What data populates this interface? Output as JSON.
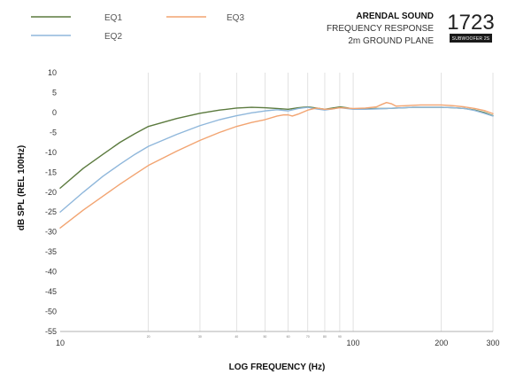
{
  "header": {
    "brand": "ARENDAL SOUND",
    "line1": "FREQUENCY RESPONSE",
    "line2": "2m GROUND PLANE",
    "model_number": "1723",
    "model_badge": "SUBWOOFER 2S"
  },
  "chart_data": {
    "type": "line",
    "title": "",
    "xlabel": "LOG FREQUENCY (Hz)",
    "ylabel": "dB SPL (REL 100Hz)",
    "x_scale": "log",
    "xlim": [
      10,
      300
    ],
    "ylim": [
      -55,
      10
    ],
    "grid": true,
    "legend_position": "top-left",
    "y_ticks": [
      10,
      5,
      0,
      -5,
      -10,
      -15,
      -20,
      -25,
      -30,
      -35,
      -40,
      -45,
      -50,
      -55
    ],
    "y_tick_labels": [
      "10",
      "5",
      "0",
      "-5",
      "-10",
      "-15",
      "-20",
      "-25",
      "-30",
      "-35",
      "-40",
      "-45",
      "-50",
      "-55"
    ],
    "x_major_ticks": [
      {
        "value": 10,
        "label": "10"
      },
      {
        "value": 100,
        "label": "100"
      },
      {
        "value": 200,
        "label": "200"
      },
      {
        "value": 300,
        "label": "300"
      }
    ],
    "x_minor_ticks": [
      {
        "value": 20,
        "label": "20"
      },
      {
        "value": 30,
        "label": "30"
      },
      {
        "value": 40,
        "label": "40"
      },
      {
        "value": 50,
        "label": "50"
      },
      {
        "value": 60,
        "label": "60"
      },
      {
        "value": 70,
        "label": "70"
      },
      {
        "value": 80,
        "label": "80"
      },
      {
        "value": 90,
        "label": "90"
      }
    ],
    "series": [
      {
        "name": "EQ1",
        "color": "#5b7a3e",
        "points": [
          [
            10,
            -19
          ],
          [
            12,
            -14
          ],
          [
            14,
            -10.5
          ],
          [
            16,
            -7.5
          ],
          [
            18,
            -5.3
          ],
          [
            20,
            -3.5
          ],
          [
            25,
            -1.5
          ],
          [
            30,
            -0.2
          ],
          [
            35,
            0.6
          ],
          [
            40,
            1.1
          ],
          [
            45,
            1.3
          ],
          [
            50,
            1.2
          ],
          [
            55,
            1.0
          ],
          [
            60,
            0.8
          ],
          [
            65,
            1.2
          ],
          [
            70,
            1.4
          ],
          [
            75,
            1.1
          ],
          [
            80,
            0.8
          ],
          [
            85,
            1.1
          ],
          [
            90,
            1.4
          ],
          [
            95,
            1.2
          ],
          [
            100,
            0.9
          ],
          [
            110,
            0.9
          ],
          [
            120,
            1.0
          ],
          [
            130,
            1.0
          ],
          [
            140,
            1.1
          ],
          [
            150,
            1.2
          ],
          [
            160,
            1.3
          ],
          [
            170,
            1.3
          ],
          [
            180,
            1.3
          ],
          [
            190,
            1.3
          ],
          [
            200,
            1.3
          ],
          [
            220,
            1.2
          ],
          [
            240,
            1.0
          ],
          [
            260,
            0.6
          ],
          [
            280,
            0.0
          ],
          [
            300,
            -0.8
          ]
        ]
      },
      {
        "name": "EQ2",
        "color": "#8fb7db",
        "points": [
          [
            10,
            -25
          ],
          [
            12,
            -20
          ],
          [
            14,
            -16
          ],
          [
            16,
            -13
          ],
          [
            18,
            -10.5
          ],
          [
            20,
            -8.5
          ],
          [
            25,
            -5.5
          ],
          [
            30,
            -3.3
          ],
          [
            35,
            -1.8
          ],
          [
            40,
            -0.8
          ],
          [
            45,
            -0.1
          ],
          [
            50,
            0.4
          ],
          [
            55,
            0.7
          ],
          [
            60,
            0.4
          ],
          [
            65,
            1.0
          ],
          [
            70,
            1.3
          ],
          [
            75,
            0.9
          ],
          [
            80,
            0.6
          ],
          [
            85,
            0.9
          ],
          [
            90,
            1.2
          ],
          [
            95,
            1.0
          ],
          [
            100,
            0.8
          ],
          [
            110,
            0.8
          ],
          [
            120,
            0.9
          ],
          [
            130,
            1.0
          ],
          [
            140,
            1.1
          ],
          [
            150,
            1.2
          ],
          [
            160,
            1.3
          ],
          [
            170,
            1.3
          ],
          [
            180,
            1.3
          ],
          [
            190,
            1.3
          ],
          [
            200,
            1.3
          ],
          [
            220,
            1.2
          ],
          [
            240,
            1.0
          ],
          [
            260,
            0.5
          ],
          [
            280,
            -0.2
          ],
          [
            300,
            -0.9
          ]
        ]
      },
      {
        "name": "EQ3",
        "color": "#f2a471",
        "points": [
          [
            10,
            -29
          ],
          [
            12,
            -24.5
          ],
          [
            14,
            -21
          ],
          [
            16,
            -18
          ],
          [
            18,
            -15.5
          ],
          [
            20,
            -13.3
          ],
          [
            25,
            -9.7
          ],
          [
            30,
            -7.0
          ],
          [
            35,
            -5.0
          ],
          [
            40,
            -3.5
          ],
          [
            45,
            -2.5
          ],
          [
            50,
            -1.8
          ],
          [
            55,
            -0.9
          ],
          [
            58,
            -0.6
          ],
          [
            60,
            -0.6
          ],
          [
            62,
            -0.9
          ],
          [
            65,
            -0.4
          ],
          [
            70,
            0.6
          ],
          [
            75,
            1.1
          ],
          [
            80,
            0.8
          ],
          [
            85,
            0.9
          ],
          [
            90,
            1.2
          ],
          [
            95,
            1.1
          ],
          [
            100,
            1.0
          ],
          [
            110,
            1.1
          ],
          [
            120,
            1.4
          ],
          [
            125,
            2.0
          ],
          [
            130,
            2.5
          ],
          [
            135,
            2.2
          ],
          [
            140,
            1.6
          ],
          [
            150,
            1.7
          ],
          [
            160,
            1.8
          ],
          [
            170,
            1.9
          ],
          [
            180,
            1.9
          ],
          [
            190,
            1.9
          ],
          [
            200,
            1.9
          ],
          [
            220,
            1.7
          ],
          [
            240,
            1.4
          ],
          [
            260,
            1.0
          ],
          [
            280,
            0.5
          ],
          [
            300,
            -0.3
          ]
        ]
      }
    ]
  }
}
